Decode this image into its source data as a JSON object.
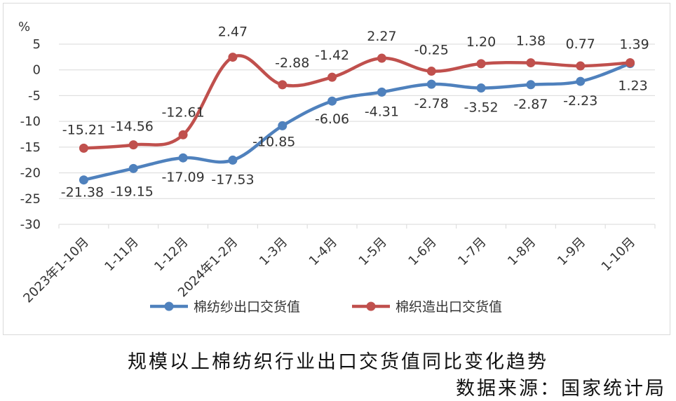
{
  "chart_data": {
    "type": "line",
    "y_unit": "%",
    "ylim": [
      -30,
      5
    ],
    "y_ticks": [
      5,
      0,
      -5,
      -10,
      -15,
      -20,
      -25,
      -30
    ],
    "categories": [
      "2023年1-10月",
      "1-11月",
      "1-12月",
      "2024年1-2月",
      "1-3月",
      "1-4月",
      "1-5月",
      "1-6月",
      "1-7月",
      "1-8月",
      "1-9月",
      "1-10月"
    ],
    "grid": true,
    "legend_position": "bottom",
    "series": [
      {
        "name": "棉纺纱出口交货值",
        "color": "#4f81bd",
        "values": [
          -21.38,
          -19.15,
          -17.09,
          -17.53,
          -10.85,
          -6.06,
          -4.31,
          -2.78,
          -3.52,
          -2.87,
          -2.23,
          1.23
        ],
        "labels": [
          "-21.38",
          "-19.15",
          "-17.09",
          "-17.53",
          "-10.85",
          "-6.06",
          "-4.31",
          "-2.78",
          "-3.52",
          "-2.87",
          "-2.23",
          "1.23"
        ]
      },
      {
        "name": "棉织造出口交货值",
        "color": "#c0504d",
        "values": [
          -15.21,
          -14.56,
          -12.61,
          2.47,
          -2.88,
          -1.42,
          2.27,
          -0.25,
          1.2,
          1.38,
          0.77,
          1.39
        ],
        "labels": [
          "-15.21",
          "-14.56",
          "-12.61",
          "2.47",
          "-2.88",
          "-1.42",
          "2.27",
          "-0.25",
          "1.20",
          "1.38",
          "0.77",
          "1.39"
        ]
      }
    ]
  },
  "caption": "规模以上棉纺织行业出口交货值同比变化趋势",
  "source": "数据来源：国家统计局"
}
